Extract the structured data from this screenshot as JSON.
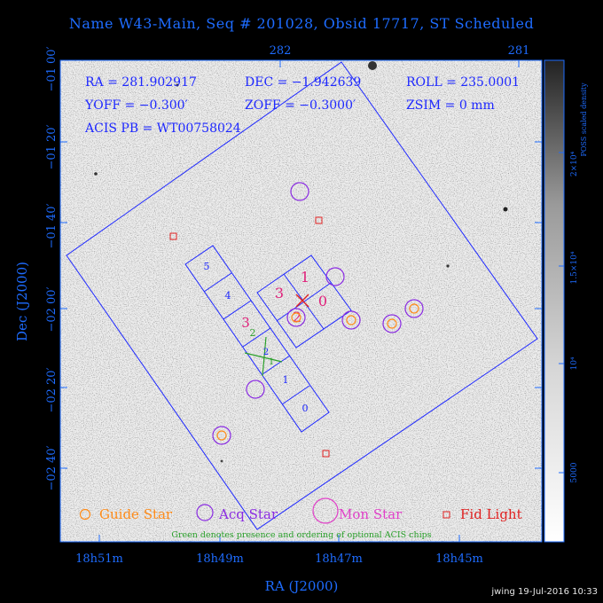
{
  "title": "Name W43-Main, Seq # 201028, Obsid 17717, ST Scheduled",
  "info": {
    "ra": "RA = 281.902917",
    "dec": "DEC = −1.942639",
    "roll": "ROLL = 235.0001",
    "yoff": "YOFF = −0.300′",
    "zoff": "ZOFF = −0.3000′",
    "zsim": "ZSIM = 0 mm",
    "acis_pb": "ACIS PB = WT00758024"
  },
  "axes": {
    "y_label": "Dec (J2000)",
    "x_label": "RA (J2000)",
    "y_ticks": [
      "−01 00′",
      "−01 20′",
      "−01 40′",
      "−02 00′",
      "−02 20′",
      "−02 40′"
    ],
    "x_ticks_bottom": [
      "18h51m",
      "18h49m",
      "18h47m",
      "18h45m"
    ],
    "x_ticks_top": [
      "282",
      "281"
    ]
  },
  "colorbar": {
    "label": "POSS scaled density",
    "ticks": [
      "2×10⁴",
      "1.5×10⁴",
      "10⁴",
      "5000"
    ]
  },
  "chips": {
    "s_labels": [
      "5",
      "4",
      "3",
      "2",
      "1",
      "0"
    ],
    "i_labels": [
      "3",
      "2",
      "1",
      "0"
    ]
  },
  "legend": {
    "guide": "Guide Star",
    "acq": "Acq Star",
    "mon": "Mon Star",
    "fid": "Fid Light",
    "note": "Green denotes presence and ordering of optional ACIS chips"
  },
  "colors": {
    "blue": "#1e6cff",
    "guide": "#ff8c1a",
    "acq": "#8a2be2",
    "mon": "#e040c8",
    "fid": "#e02020",
    "green": "#2aa02a",
    "chip_magenta": "#e0207a"
  },
  "footer": "jwing 19-Jul-2016 10:33"
}
